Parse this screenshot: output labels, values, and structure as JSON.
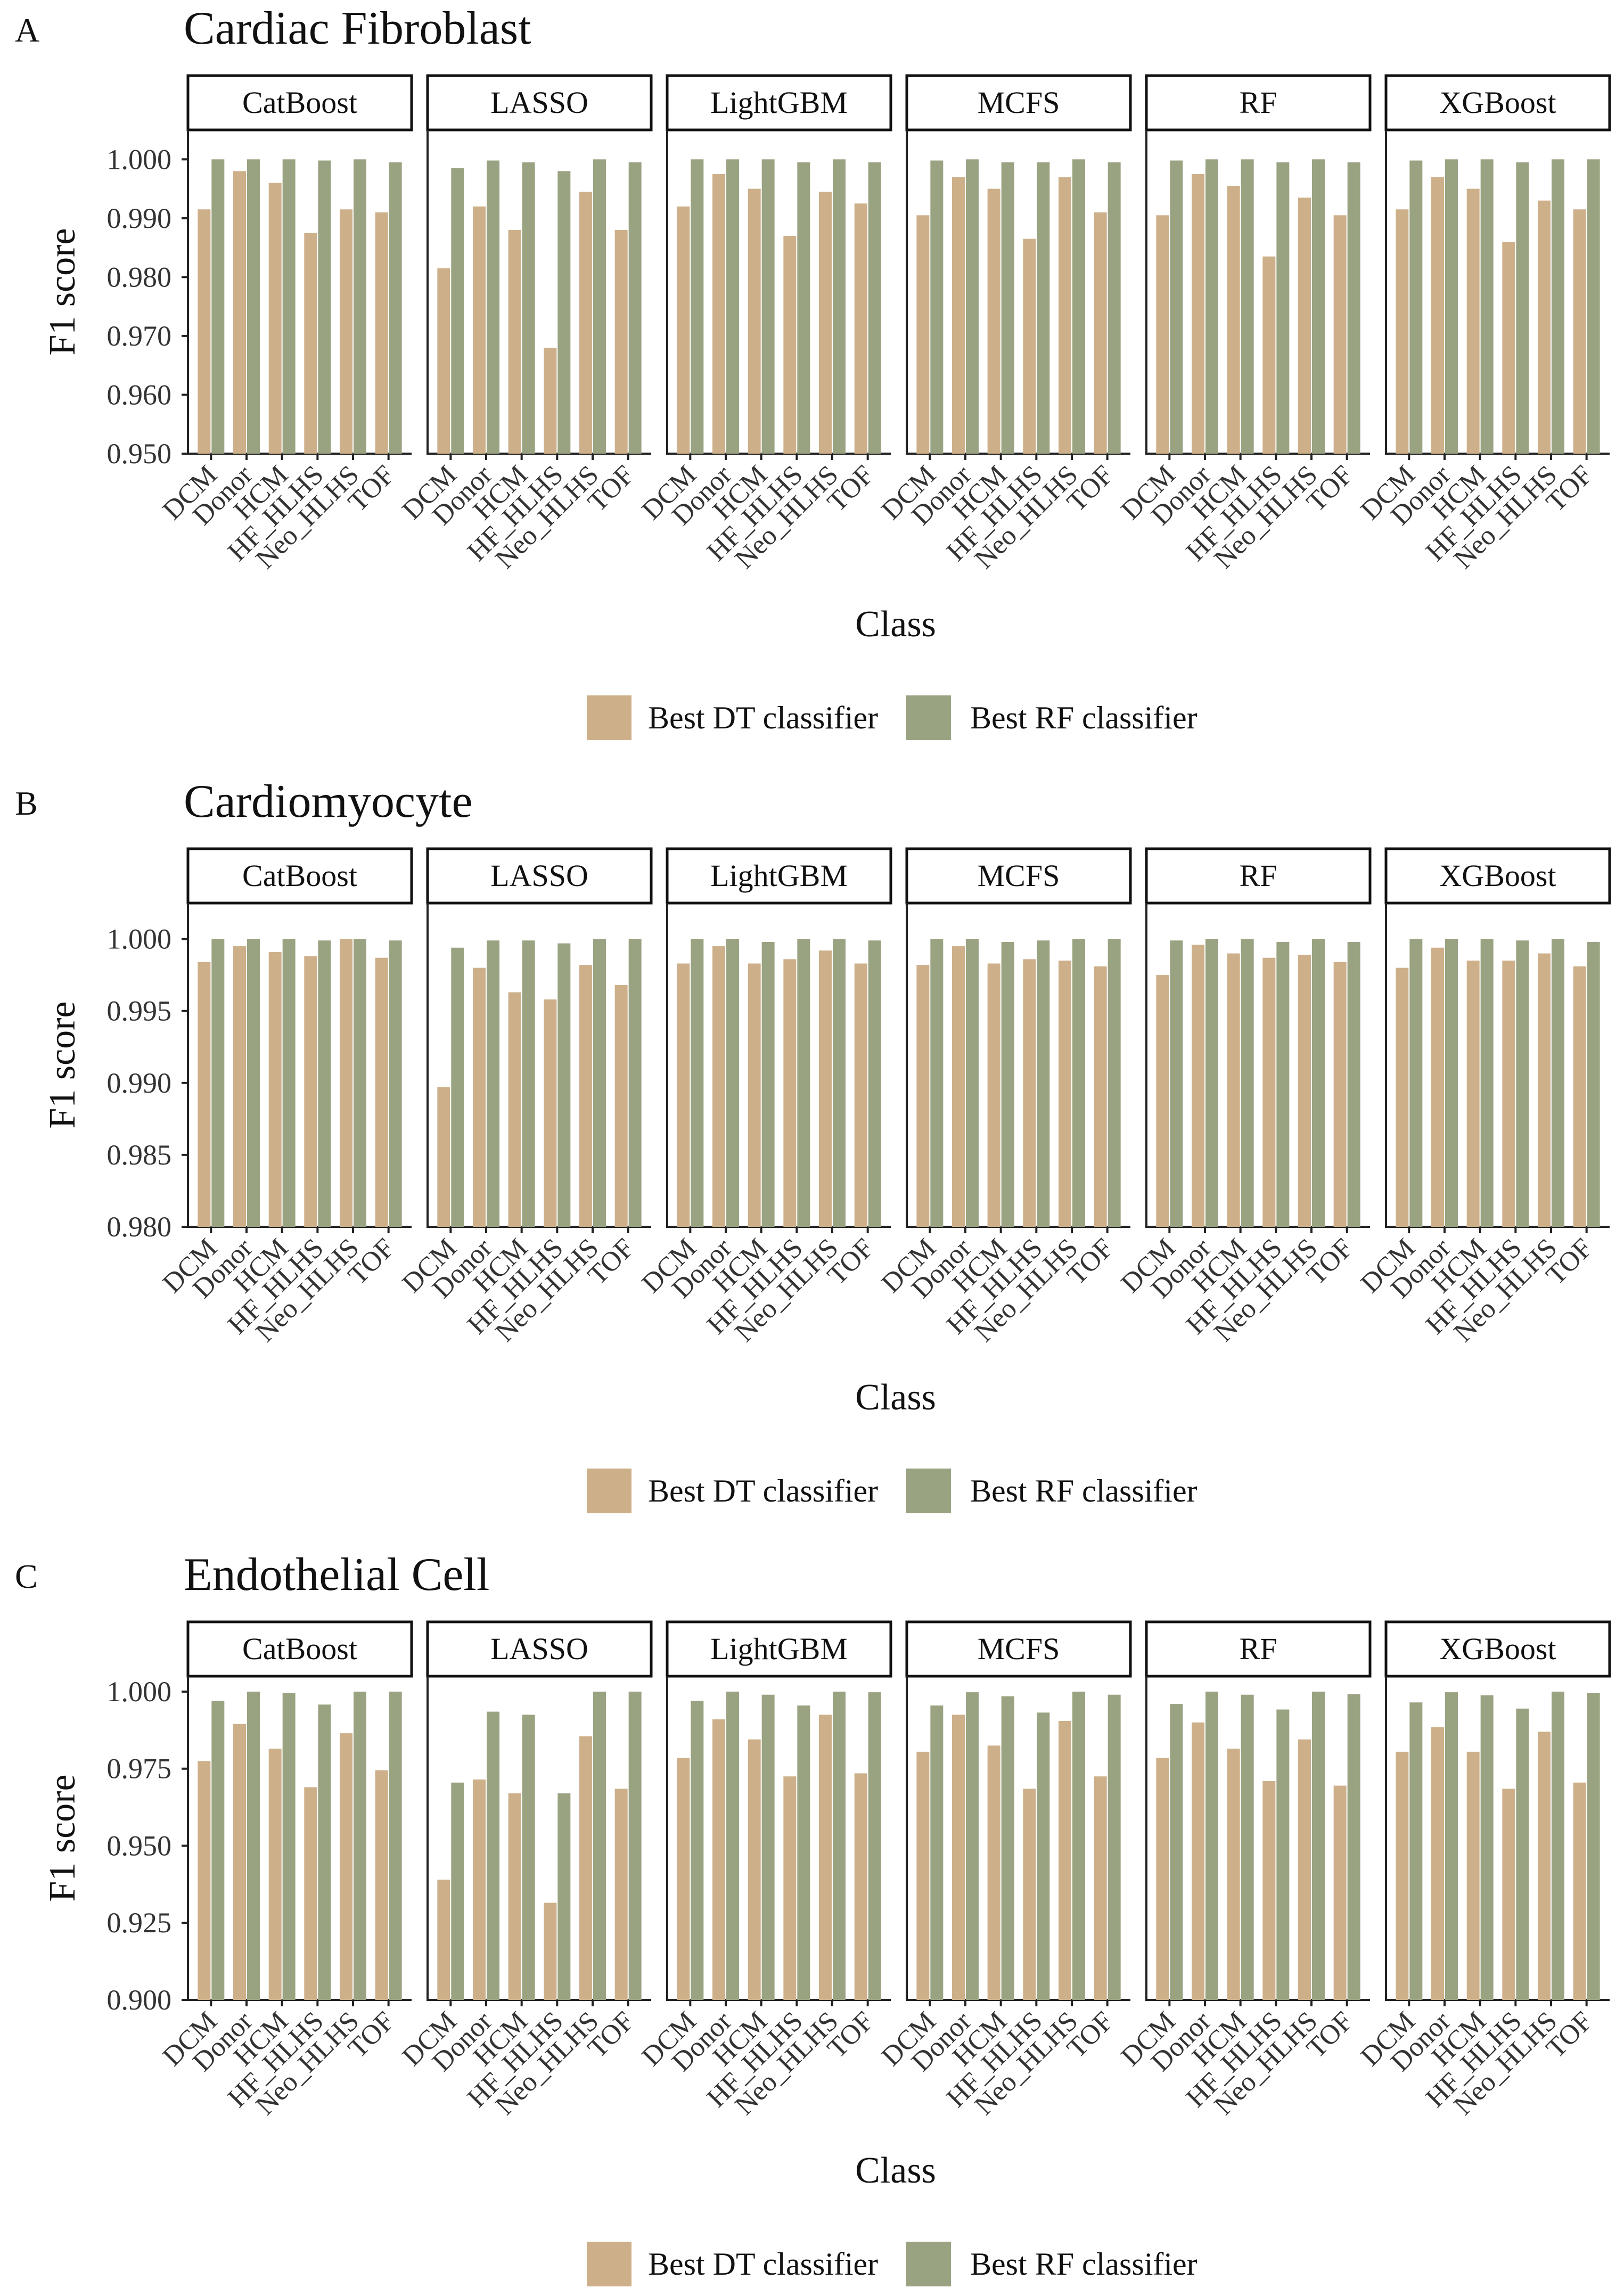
{
  "chart_data": [
    {
      "panel_letter": "A",
      "title": "Cardiac Fibroblast",
      "type": "bar",
      "ylabel": "F1 score",
      "xlabel": "Class",
      "ylim": [
        0.95,
        1.005
      ],
      "yticks": [
        "0.950",
        "0.960",
        "0.970",
        "0.980",
        "0.990",
        "1.000"
      ],
      "categories": [
        "DCM",
        "Donor",
        "HCM",
        "HF_HLHS",
        "Neo_HLHS",
        "TOF"
      ],
      "facets": [
        {
          "name": "CatBoost",
          "series": [
            {
              "name": "Best DT classifier",
              "values": [
                0.9915,
                0.998,
                0.996,
                0.9875,
                0.9915,
                0.991
              ]
            },
            {
              "name": "Best RF classifier",
              "values": [
                1.0,
                1.0,
                1.0,
                0.9998,
                1.0,
                0.9995
              ]
            }
          ]
        },
        {
          "name": "LASSO",
          "series": [
            {
              "name": "Best DT classifier",
              "values": [
                0.9815,
                0.992,
                0.988,
                0.968,
                0.9945,
                0.988
              ]
            },
            {
              "name": "Best RF classifier",
              "values": [
                0.9985,
                0.9998,
                0.9995,
                0.998,
                1.0,
                0.9995
              ]
            }
          ]
        },
        {
          "name": "LightGBM",
          "series": [
            {
              "name": "Best DT classifier",
              "values": [
                0.992,
                0.9975,
                0.995,
                0.987,
                0.9945,
                0.9925
              ]
            },
            {
              "name": "Best RF classifier",
              "values": [
                1.0,
                1.0,
                1.0,
                0.9995,
                1.0,
                0.9995
              ]
            }
          ]
        },
        {
          "name": "MCFS",
          "series": [
            {
              "name": "Best DT classifier",
              "values": [
                0.9905,
                0.997,
                0.995,
                0.9865,
                0.997,
                0.991
              ]
            },
            {
              "name": "Best RF classifier",
              "values": [
                0.9998,
                1.0,
                0.9995,
                0.9995,
                1.0,
                0.9995
              ]
            }
          ]
        },
        {
          "name": "RF",
          "series": [
            {
              "name": "Best DT classifier",
              "values": [
                0.9905,
                0.9975,
                0.9955,
                0.9835,
                0.9935,
                0.9905
              ]
            },
            {
              "name": "Best RF classifier",
              "values": [
                0.9998,
                1.0,
                1.0,
                0.9995,
                1.0,
                0.9995
              ]
            }
          ]
        },
        {
          "name": "XGBoost",
          "series": [
            {
              "name": "Best DT classifier",
              "values": [
                0.9915,
                0.997,
                0.995,
                0.986,
                0.993,
                0.9915
              ]
            },
            {
              "name": "Best RF classifier",
              "values": [
                0.9998,
                1.0,
                1.0,
                0.9995,
                1.0,
                1.0
              ]
            }
          ]
        }
      ]
    },
    {
      "panel_letter": "B",
      "title": "Cardiomyocyte",
      "type": "bar",
      "ylabel": "F1 score",
      "xlabel": "Class",
      "ylim": [
        0.98,
        1.0025
      ],
      "yticks": [
        "0.980",
        "0.985",
        "0.990",
        "0.995",
        "1.000"
      ],
      "categories": [
        "DCM",
        "Donor",
        "HCM",
        "HF_HLHS",
        "Neo_HLHS",
        "TOF"
      ],
      "facets": [
        {
          "name": "CatBoost",
          "series": [
            {
              "name": "Best DT classifier",
              "values": [
                0.9984,
                0.9995,
                0.9991,
                0.9988,
                1.0,
                0.9987
              ]
            },
            {
              "name": "Best RF classifier",
              "values": [
                1.0,
                1.0,
                1.0,
                0.9999,
                1.0,
                0.9999
              ]
            }
          ]
        },
        {
          "name": "LASSO",
          "series": [
            {
              "name": "Best DT classifier",
              "values": [
                0.9897,
                0.998,
                0.9963,
                0.9958,
                0.9982,
                0.9968
              ]
            },
            {
              "name": "Best RF classifier",
              "values": [
                0.9994,
                0.9999,
                0.9999,
                0.9997,
                1.0,
                1.0
              ]
            }
          ]
        },
        {
          "name": "LightGBM",
          "series": [
            {
              "name": "Best DT classifier",
              "values": [
                0.9983,
                0.9995,
                0.9983,
                0.9986,
                0.9992,
                0.9983
              ]
            },
            {
              "name": "Best RF classifier",
              "values": [
                1.0,
                1.0,
                0.9998,
                1.0,
                1.0,
                0.9999
              ]
            }
          ]
        },
        {
          "name": "MCFS",
          "series": [
            {
              "name": "Best DT classifier",
              "values": [
                0.9982,
                0.9995,
                0.9983,
                0.9986,
                0.9985,
                0.9981
              ]
            },
            {
              "name": "Best RF classifier",
              "values": [
                1.0,
                1.0,
                0.9998,
                0.9999,
                1.0,
                1.0
              ]
            }
          ]
        },
        {
          "name": "RF",
          "series": [
            {
              "name": "Best DT classifier",
              "values": [
                0.9975,
                0.9996,
                0.999,
                0.9987,
                0.9989,
                0.9984
              ]
            },
            {
              "name": "Best RF classifier",
              "values": [
                0.9999,
                1.0,
                1.0,
                0.9998,
                1.0,
                0.9998
              ]
            }
          ]
        },
        {
          "name": "XGBoost",
          "series": [
            {
              "name": "Best DT classifier",
              "values": [
                0.998,
                0.9994,
                0.9985,
                0.9985,
                0.999,
                0.9981
              ]
            },
            {
              "name": "Best RF classifier",
              "values": [
                1.0,
                1.0,
                1.0,
                0.9999,
                1.0,
                0.9998
              ]
            }
          ]
        }
      ]
    },
    {
      "panel_letter": "C",
      "title": "Endothelial Cell",
      "type": "bar",
      "ylabel": "F1 score",
      "xlabel": "Class",
      "ylim": [
        0.9,
        1.005
      ],
      "yticks": [
        "0.900",
        "0.925",
        "0.950",
        "0.975",
        "1.000"
      ],
      "categories": [
        "DCM",
        "Donor",
        "HCM",
        "HF_HLHS",
        "Neo_HLHS",
        "TOF"
      ],
      "facets": [
        {
          "name": "CatBoost",
          "series": [
            {
              "name": "Best DT classifier",
              "values": [
                0.9775,
                0.9895,
                0.9815,
                0.969,
                0.9865,
                0.9745
              ]
            },
            {
              "name": "Best RF classifier",
              "values": [
                0.997,
                1.0,
                0.9995,
                0.9958,
                1.0,
                1.0
              ]
            }
          ]
        },
        {
          "name": "LASSO",
          "series": [
            {
              "name": "Best DT classifier",
              "values": [
                0.939,
                0.9715,
                0.967,
                0.9315,
                0.9855,
                0.9685
              ]
            },
            {
              "name": "Best RF classifier",
              "values": [
                0.9705,
                0.9935,
                0.9925,
                0.967,
                1.0,
                1.0
              ]
            }
          ]
        },
        {
          "name": "LightGBM",
          "series": [
            {
              "name": "Best DT classifier",
              "values": [
                0.9785,
                0.991,
                0.9845,
                0.9725,
                0.9925,
                0.9735
              ]
            },
            {
              "name": "Best RF classifier",
              "values": [
                0.997,
                1.0,
                0.999,
                0.9955,
                1.0,
                0.9998
              ]
            }
          ]
        },
        {
          "name": "MCFS",
          "series": [
            {
              "name": "Best DT classifier",
              "values": [
                0.9805,
                0.9925,
                0.9825,
                0.9685,
                0.9905,
                0.9725
              ]
            },
            {
              "name": "Best RF classifier",
              "values": [
                0.9955,
                0.9998,
                0.9985,
                0.9932,
                1.0,
                0.999
              ]
            }
          ]
        },
        {
          "name": "RF",
          "series": [
            {
              "name": "Best DT classifier",
              "values": [
                0.9785,
                0.99,
                0.9815,
                0.971,
                0.9845,
                0.9695
              ]
            },
            {
              "name": "Best RF classifier",
              "values": [
                0.996,
                1.0,
                0.999,
                0.9942,
                1.0,
                0.9992
              ]
            }
          ]
        },
        {
          "name": "XGBoost",
          "series": [
            {
              "name": "Best DT classifier",
              "values": [
                0.9805,
                0.9885,
                0.9805,
                0.9685,
                0.987,
                0.9705
              ]
            },
            {
              "name": "Best RF classifier",
              "values": [
                0.9965,
                0.9998,
                0.9988,
                0.9945,
                1.0,
                0.9995
              ]
            }
          ]
        }
      ]
    }
  ],
  "legend": {
    "items": [
      "Best DT classifier",
      "Best RF classifier"
    ]
  },
  "colors": {
    "dt": "#cdb08a",
    "rf": "#9aa381",
    "strip_border": "#111111"
  }
}
